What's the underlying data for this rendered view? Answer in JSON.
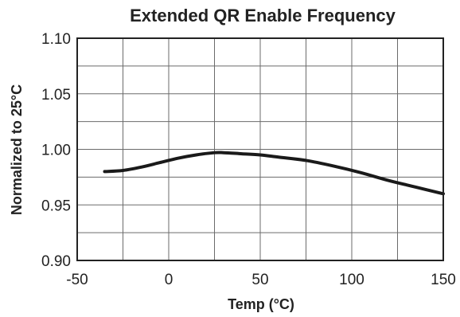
{
  "chart_data": {
    "type": "line",
    "title": "Extended QR Enable Frequency",
    "xlabel": "Temp (°C)",
    "ylabel": "Normalized to 25°C",
    "xlim": [
      -50,
      150
    ],
    "ylim": [
      0.9,
      1.1
    ],
    "x_ticks": [
      -50,
      0,
      50,
      100,
      150
    ],
    "x_tick_labels": [
      "-50",
      "0",
      "50",
      "100",
      "150"
    ],
    "y_ticks": [
      0.9,
      0.95,
      1.0,
      1.05,
      1.1
    ],
    "y_tick_labels": [
      "0.90",
      "0.95",
      "1.00",
      "1.05",
      "1.10"
    ],
    "x_grid_step": 25,
    "y_grid_step": 0.025,
    "grid": true,
    "legend": "none",
    "series": [
      {
        "color": "#1a1a1a",
        "x": [
          -35,
          -25,
          -15,
          -5,
          5,
          15,
          25,
          30,
          40,
          50,
          60,
          75,
          90,
          105,
          120,
          135,
          150
        ],
        "y": [
          0.98,
          0.981,
          0.984,
          0.988,
          0.992,
          0.995,
          0.997,
          0.997,
          0.996,
          0.995,
          0.993,
          0.99,
          0.985,
          0.979,
          0.972,
          0.966,
          0.96
        ]
      }
    ]
  }
}
